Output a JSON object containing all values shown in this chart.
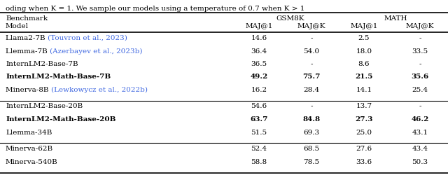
{
  "header_benchmark": "Benchmark",
  "header_model": "Model",
  "gsm8k_label": "GSM8K",
  "math_label": "MATH",
  "col_headers": [
    "MAJ@1",
    "MAJ@K",
    "MAJ@1",
    "MAJ@K"
  ],
  "groups": [
    {
      "rows": [
        {
          "model_plain": "Llama2-7B ",
          "model_cite": "(Touvron et al., 2023)",
          "bold": false,
          "values": [
            "14.6",
            "-",
            "2.5",
            "-"
          ]
        },
        {
          "model_plain": "Llemma-7B ",
          "model_cite": "(Azerbayev et al., 2023b)",
          "bold": false,
          "values": [
            "36.4",
            "54.0",
            "18.0",
            "33.5"
          ]
        },
        {
          "model_plain": "InternLM2-Base-7B",
          "model_cite": "",
          "bold": false,
          "values": [
            "36.5",
            "-",
            "8.6",
            "-"
          ]
        },
        {
          "model_plain": "InternLM2-Math-Base-7B",
          "model_cite": "",
          "bold": true,
          "values": [
            "49.2",
            "75.7",
            "21.5",
            "35.6"
          ]
        },
        {
          "model_plain": "Minerva-8B ",
          "model_cite": "(Lewkowycz et al., 2022b)",
          "bold": false,
          "values": [
            "16.2",
            "28.4",
            "14.1",
            "25.4"
          ]
        }
      ]
    },
    {
      "rows": [
        {
          "model_plain": "InternLM2-Base-20B",
          "model_cite": "",
          "bold": false,
          "values": [
            "54.6",
            "-",
            "13.7",
            "-"
          ]
        },
        {
          "model_plain": "InternLM2-Math-Base-20B",
          "model_cite": "",
          "bold": true,
          "values": [
            "63.7",
            "84.8",
            "27.3",
            "46.2"
          ]
        },
        {
          "model_plain": "Llemma-34B",
          "model_cite": "",
          "bold": false,
          "values": [
            "51.5",
            "69.3",
            "25.0",
            "43.1"
          ]
        }
      ]
    },
    {
      "rows": [
        {
          "model_plain": "Minerva-62B",
          "model_cite": "",
          "bold": false,
          "values": [
            "52.4",
            "68.5",
            "27.6",
            "43.4"
          ]
        },
        {
          "model_plain": "Minerva-540B",
          "model_cite": "",
          "bold": false,
          "values": [
            "58.8",
            "78.5",
            "33.6",
            "50.3"
          ]
        }
      ]
    }
  ],
  "cite_color": "#4169e1",
  "text_color": "#000000",
  "background_color": "#ffffff",
  "top_text": "oding when K = 1. We sample our models using a temperature of 0.7 when K > 1"
}
